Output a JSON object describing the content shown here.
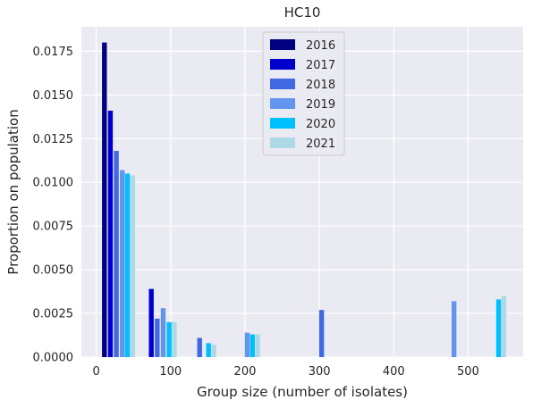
{
  "chart_data": {
    "type": "bar",
    "title": "HC10",
    "xlabel": "Group size (number of isolates)",
    "ylabel": "Proportion on population",
    "xlim": [
      -20,
      574
    ],
    "ylim": [
      0,
      0.0189
    ],
    "xticks": [
      0,
      100,
      200,
      300,
      400,
      500
    ],
    "yticks": [
      0.0,
      0.0025,
      0.005,
      0.0075,
      0.01,
      0.0125,
      0.015,
      0.0175
    ],
    "ytick_labels": [
      "0.0000",
      "0.0025",
      "0.0050",
      "0.0075",
      "0.0100",
      "0.0125",
      "0.0150",
      "0.0175"
    ],
    "grid": true,
    "legend_position": "top-center",
    "bar_width": 6.5,
    "series": [
      {
        "name": "2016",
        "color": "#000080",
        "points": [
          {
            "x": 11,
            "y": 0.018
          }
        ]
      },
      {
        "name": "2017",
        "color": "#0000cd",
        "points": [
          {
            "x": 19,
            "y": 0.0141
          },
          {
            "x": 74,
            "y": 0.0039
          }
        ]
      },
      {
        "name": "2018",
        "color": "#4169e1",
        "points": [
          {
            "x": 27,
            "y": 0.0118
          },
          {
            "x": 82,
            "y": 0.0022
          },
          {
            "x": 139,
            "y": 0.0011
          },
          {
            "x": 303,
            "y": 0.0027
          }
        ]
      },
      {
        "name": "2019",
        "color": "#6495ed",
        "points": [
          {
            "x": 35,
            "y": 0.0107
          },
          {
            "x": 90,
            "y": 0.0028
          },
          {
            "x": 203,
            "y": 0.0014
          },
          {
            "x": 481,
            "y": 0.0032
          }
        ]
      },
      {
        "name": "2020",
        "color": "#00bfff",
        "points": [
          {
            "x": 42,
            "y": 0.0105
          },
          {
            "x": 98,
            "y": 0.002
          },
          {
            "x": 151,
            "y": 0.0008
          },
          {
            "x": 210,
            "y": 0.0013
          },
          {
            "x": 541,
            "y": 0.0033
          }
        ]
      },
      {
        "name": "2021",
        "color": "#add8e6",
        "points": [
          {
            "x": 49,
            "y": 0.0104
          },
          {
            "x": 105,
            "y": 0.002
          },
          {
            "x": 158,
            "y": 0.0007
          },
          {
            "x": 217,
            "y": 0.0013
          },
          {
            "x": 548,
            "y": 0.0035
          }
        ]
      }
    ]
  }
}
